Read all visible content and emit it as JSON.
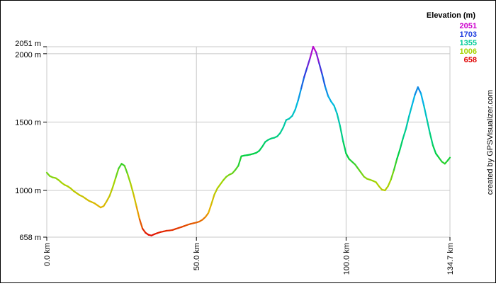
{
  "chart_data": {
    "type": "line",
    "title": "",
    "xlabel": "",
    "ylabel": "",
    "xlim": [
      0,
      134.7
    ],
    "ylim": [
      658,
      2051
    ],
    "x_ticks": [
      {
        "value": 0,
        "label": "0.0 km"
      },
      {
        "value": 50,
        "label": "50.0 km"
      },
      {
        "value": 100,
        "label": "100.0 km"
      },
      {
        "value": 134.7,
        "label": "134.7 km"
      }
    ],
    "y_ticks": [
      {
        "value": 658,
        "label": "658 m"
      },
      {
        "value": 1000,
        "label": "1000 m"
      },
      {
        "value": 1500,
        "label": "1500 m"
      },
      {
        "value": 2000,
        "label": "2000 m"
      },
      {
        "value": 2051,
        "label": "2051 m"
      }
    ],
    "grid": true,
    "legend": {
      "title": "Elevation (m)",
      "placement": "top-right",
      "entries": [
        {
          "label": "2051",
          "color": "#cc00cc"
        },
        {
          "label": "1703",
          "color": "#2040e0"
        },
        {
          "label": "1355",
          "color": "#00cc99"
        },
        {
          "label": "1006",
          "color": "#a6d400"
        },
        {
          "label": "658",
          "color": "#e00000"
        }
      ]
    },
    "colorscale": [
      "#e00000",
      "#e8b000",
      "#a6d400",
      "#00d040",
      "#00cc99",
      "#00b8e8",
      "#2040e0",
      "#cc00cc"
    ],
    "series": [
      {
        "x": [
          0,
          1,
          2,
          3,
          4,
          5,
          6,
          7,
          8,
          9,
          10,
          11,
          12,
          13,
          14,
          15,
          16,
          17,
          18,
          19,
          20,
          21,
          22,
          23,
          24,
          25,
          26,
          27,
          28,
          29,
          30,
          31,
          32,
          33,
          34,
          35,
          36,
          37,
          38,
          39,
          40,
          41,
          42,
          43,
          44,
          45,
          46,
          47,
          48,
          49,
          50,
          51,
          52,
          53,
          54,
          55,
          56,
          57,
          58,
          59,
          60,
          61,
          62,
          63,
          64,
          65,
          66,
          67,
          68,
          69,
          70,
          71,
          72,
          73,
          74,
          75,
          76,
          77,
          78,
          79,
          80,
          81,
          82,
          83,
          84,
          85,
          86,
          87,
          88,
          89,
          90,
          91,
          92,
          93,
          94,
          95,
          96,
          97,
          98,
          99,
          100,
          101,
          102,
          103,
          104,
          105,
          106,
          107,
          108,
          109,
          110,
          111,
          112,
          113,
          114,
          115,
          116,
          117,
          118,
          119,
          120,
          121,
          122,
          123,
          124,
          125,
          126,
          127,
          128,
          129,
          130,
          131,
          132,
          133,
          134,
          134.7
        ],
        "y": [
          1130,
          1105,
          1095,
          1090,
          1075,
          1055,
          1040,
          1030,
          1015,
          995,
          980,
          965,
          955,
          940,
          925,
          915,
          905,
          890,
          875,
          885,
          920,
          960,
          1020,
          1090,
          1160,
          1195,
          1180,
          1120,
          1050,
          970,
          880,
          790,
          720,
          690,
          675,
          670,
          680,
          688,
          695,
          700,
          705,
          707,
          710,
          718,
          725,
          732,
          740,
          748,
          755,
          760,
          765,
          772,
          785,
          805,
          835,
          900,
          970,
          1015,
          1045,
          1075,
          1100,
          1115,
          1125,
          1150,
          1180,
          1250,
          1255,
          1258,
          1262,
          1268,
          1275,
          1290,
          1320,
          1355,
          1370,
          1380,
          1385,
          1395,
          1420,
          1460,
          1515,
          1525,
          1545,
          1590,
          1660,
          1745,
          1830,
          1900,
          1970,
          2051,
          2010,
          1930,
          1850,
          1760,
          1690,
          1650,
          1620,
          1560,
          1470,
          1360,
          1270,
          1230,
          1210,
          1190,
          1160,
          1130,
          1100,
          1085,
          1078,
          1070,
          1060,
          1030,
          1005,
          1000,
          1030,
          1080,
          1150,
          1230,
          1300,
          1380,
          1450,
          1540,
          1620,
          1700,
          1755,
          1710,
          1620,
          1520,
          1420,
          1330,
          1270,
          1240,
          1210,
          1195,
          1220,
          1240
        ]
      }
    ]
  },
  "credit": "created by GPSVisualizer.com"
}
